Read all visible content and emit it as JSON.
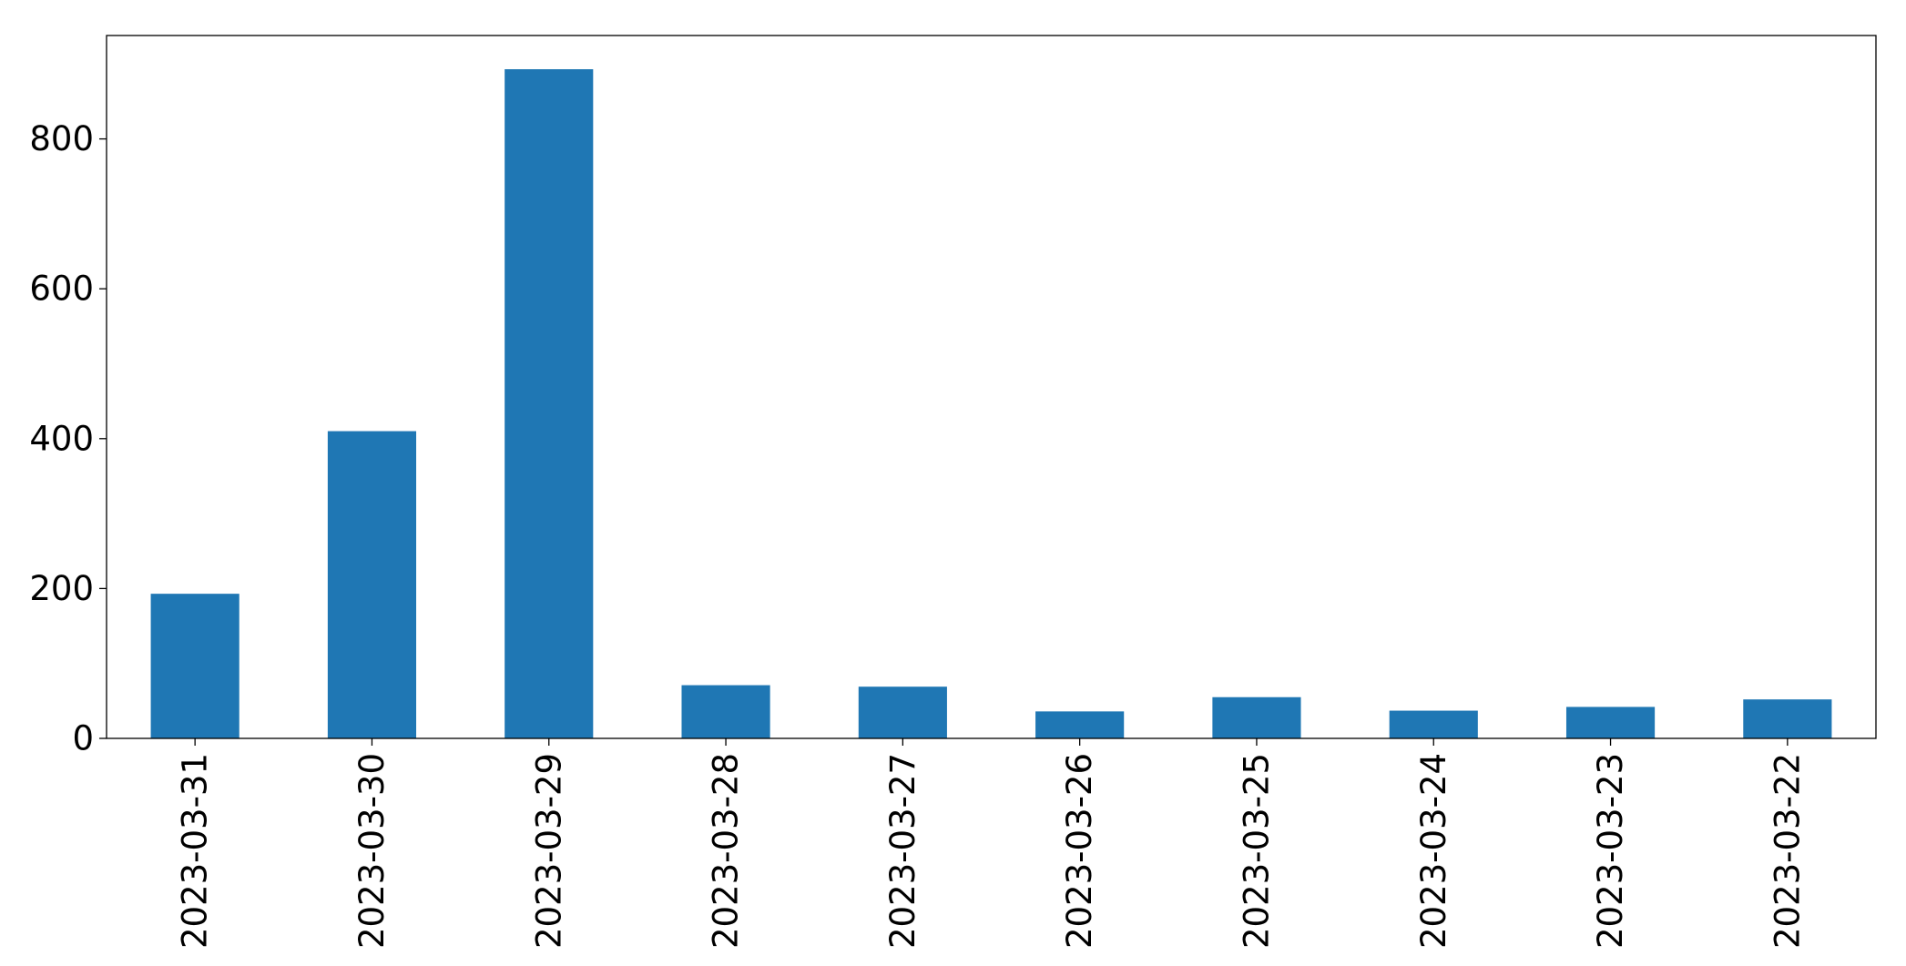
{
  "chart_data": {
    "type": "bar",
    "title": "",
    "xlabel": "",
    "ylabel": "",
    "categories": [
      "2023-03-31",
      "2023-03-30",
      "2023-03-29",
      "2023-03-28",
      "2023-03-27",
      "2023-03-26",
      "2023-03-25",
      "2023-03-24",
      "2023-03-23",
      "2023-03-22"
    ],
    "values": [
      193,
      410,
      893,
      71,
      69,
      36,
      55,
      37,
      42,
      52
    ],
    "ylim": [
      0,
      938
    ],
    "yticks": [
      0,
      200,
      400,
      600,
      800
    ],
    "ytick_labels": [
      "0",
      "200",
      "400",
      "600",
      "800"
    ],
    "grid": false,
    "legend": "none",
    "bar_color": "#1f77b4"
  }
}
